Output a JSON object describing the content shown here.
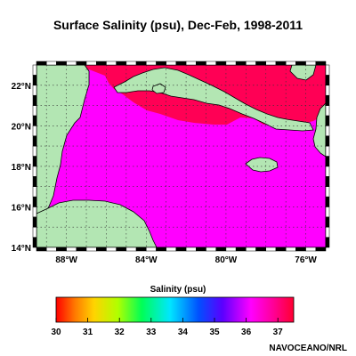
{
  "title": "Surface Salinity (psu), Dec-Feb, 1998-2011",
  "map": {
    "lat_range": [
      14,
      23
    ],
    "lon_range": [
      -89.5,
      -75
    ],
    "lat_ticks": [
      {
        "value": 22,
        "label": "22°N"
      },
      {
        "value": 20,
        "label": "20°N"
      },
      {
        "value": 18,
        "label": "18°N"
      },
      {
        "value": 16,
        "label": "16°N"
      },
      {
        "value": 14,
        "label": "14°N"
      }
    ],
    "lon_ticks": [
      {
        "value": -88,
        "label": "88°W"
      },
      {
        "value": -84,
        "label": "84°W"
      },
      {
        "value": -80,
        "label": "80°W"
      },
      {
        "value": -76,
        "label": "76°W"
      }
    ],
    "colors": {
      "land": "#b3e6b3",
      "salinity_36_5": "#ff00ff",
      "salinity_37": "#ff0055",
      "grid": "#333333"
    }
  },
  "colorbar": {
    "label": "Salinity (psu)",
    "range": [
      30,
      37.5
    ],
    "ticks": [
      "30",
      "31",
      "32",
      "33",
      "34",
      "35",
      "36",
      "37"
    ]
  },
  "credit": "NAVOCEANO/NRL"
}
